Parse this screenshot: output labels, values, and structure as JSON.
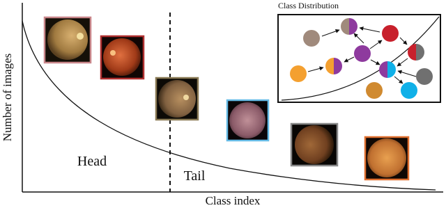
{
  "y_axis_label": "Number of images",
  "x_axis_label": "Class index",
  "head_label": "Head",
  "tail_label": "Tail",
  "inset": {
    "title": "Class Distribution"
  }
}
